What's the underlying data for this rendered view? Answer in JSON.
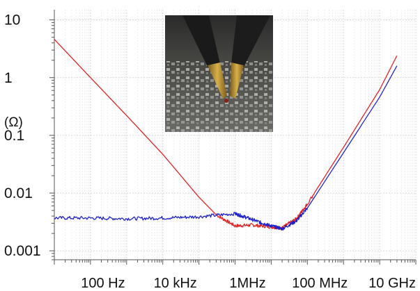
{
  "chart_data": {
    "type": "line",
    "title": "",
    "xlabel": "",
    "ylabel": "(Ω)",
    "x_scale": "log",
    "y_scale": "log",
    "xlim": [
      10,
      100000000000
    ],
    "ylim": [
      0.0007,
      15
    ],
    "grid": true,
    "legend": "none",
    "y_ticks": [
      {
        "value": 10,
        "label": "10"
      },
      {
        "value": 1,
        "label": "1"
      },
      {
        "value": 0.1,
        "label": "0.1"
      },
      {
        "value": 0.01,
        "label": "0.01"
      },
      {
        "value": 0.001,
        "label": "0.001"
      }
    ],
    "x_ticks": [
      {
        "value": 100,
        "label": "100 Hz"
      },
      {
        "value": 10000,
        "label": "10 kHz"
      },
      {
        "value": 1000000,
        "label": "1MHz"
      },
      {
        "value": 100000000,
        "label": "100 MHz"
      },
      {
        "value": 10000000000,
        "label": "10 GHz"
      }
    ],
    "series": [
      {
        "color": "#e32222",
        "x": [
          10,
          100,
          1000,
          10000,
          100000,
          300000,
          1000000,
          3000000,
          10000000,
          20000000,
          50000000,
          100000000,
          1000000000,
          10000000000,
          30000000000
        ],
        "y": [
          4.6,
          1.0,
          0.22,
          0.047,
          0.0085,
          0.0042,
          0.0027,
          0.0028,
          0.0026,
          0.0025,
          0.0036,
          0.0065,
          0.062,
          0.62,
          2.4
        ]
      },
      {
        "color": "#1f22cc",
        "x": [
          10,
          100,
          1000,
          10000,
          100000,
          1000000,
          2000000,
          5000000,
          10000000,
          20000000,
          50000000,
          100000000,
          1000000000,
          10000000000,
          30000000000
        ],
        "y": [
          0.0037,
          0.0037,
          0.0036,
          0.0037,
          0.0039,
          0.0044,
          0.0038,
          0.0031,
          0.0027,
          0.0024,
          0.0033,
          0.0055,
          0.05,
          0.46,
          1.6
        ]
      }
    ]
  }
}
